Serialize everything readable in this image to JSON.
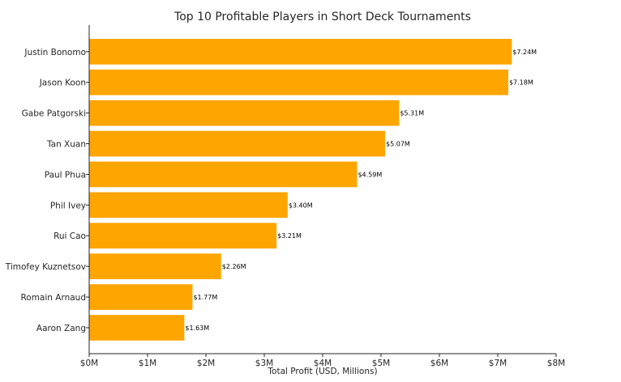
{
  "chart_data": {
    "type": "bar",
    "orientation": "horizontal",
    "title": "Top 10 Profitable Players in Short Deck Tournaments",
    "xlabel": "Total Profit (USD, Millions)",
    "ylabel": "",
    "categories": [
      "Justin Bonomo",
      "Jason Koon",
      "Gabe Patgorski",
      "Tan Xuan",
      "Paul Phua",
      "Phil Ivey",
      "Rui Cao",
      "Timofey Kuznetsov",
      "Romain Arnaud",
      "Aaron Zang"
    ],
    "values": [
      7.24,
      7.18,
      5.31,
      5.07,
      4.59,
      3.4,
      3.21,
      2.26,
      1.77,
      1.63
    ],
    "data_labels": [
      "$7.24M",
      "$7.18M",
      "$5.31M",
      "$5.07M",
      "$4.59M",
      "$3.40M",
      "$3.21M",
      "$2.26M",
      "$1.77M",
      "$1.63M"
    ],
    "xticks": [
      0,
      1,
      2,
      3,
      4,
      5,
      6,
      7,
      8
    ],
    "xtick_labels": [
      "$0M",
      "$1M",
      "$2M",
      "$3M",
      "$4M",
      "$5M",
      "$6M",
      "$7M",
      "$8M"
    ],
    "xlim": [
      0,
      8
    ],
    "bar_color": "#FFA500",
    "grid": false,
    "legend": "none"
  }
}
